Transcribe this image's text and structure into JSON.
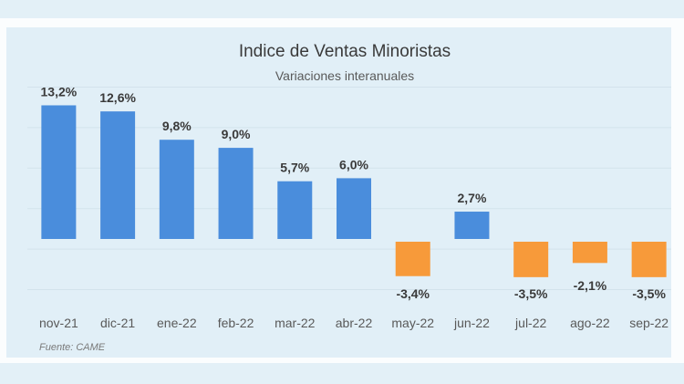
{
  "chart_data": {
    "type": "bar",
    "title": "Indice de Ventas Minoristas",
    "subtitle": "Variaciones interanuales",
    "categories": [
      "nov-21",
      "dic-21",
      "ene-22",
      "feb-22",
      "mar-22",
      "abr-22",
      "may-22",
      "jun-22",
      "jul-22",
      "ago-22",
      "sep-22"
    ],
    "values": [
      13.2,
      12.6,
      9.8,
      9.0,
      5.7,
      6.0,
      -3.4,
      2.7,
      -3.5,
      -2.1,
      -3.5
    ],
    "data_labels": [
      "13,2%",
      "12,6%",
      "9,8%",
      "9,0%",
      "5,7%",
      "6,0%",
      "-3,4%",
      "2,7%",
      "-3,5%",
      "-2,1%",
      "-3,5%"
    ],
    "xlabel": "",
    "ylabel": "",
    "ylim": [
      -5,
      15
    ],
    "grid": true,
    "legend": "none",
    "colors": {
      "positive": "#4a8ddc",
      "negative": "#f79a3a"
    },
    "source": "Fuente: CAME"
  }
}
